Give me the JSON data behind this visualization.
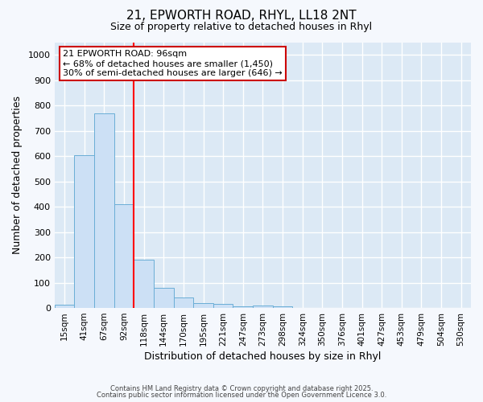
{
  "title_line1": "21, EPWORTH ROAD, RHYL, LL18 2NT",
  "title_line2": "Size of property relative to detached houses in Rhyl",
  "xlabel": "Distribution of detached houses by size in Rhyl",
  "ylabel": "Number of detached properties",
  "categories": [
    "15sqm",
    "41sqm",
    "67sqm",
    "92sqm",
    "118sqm",
    "144sqm",
    "170sqm",
    "195sqm",
    "221sqm",
    "247sqm",
    "273sqm",
    "298sqm",
    "324sqm",
    "350sqm",
    "376sqm",
    "401sqm",
    "427sqm",
    "453sqm",
    "479sqm",
    "504sqm",
    "530sqm"
  ],
  "values": [
    12,
    605,
    770,
    410,
    192,
    80,
    40,
    18,
    15,
    8,
    10,
    5,
    0,
    0,
    0,
    0,
    0,
    0,
    0,
    0,
    0
  ],
  "bar_color": "#cce0f5",
  "bar_edge_color": "#6aaed6",
  "red_line_x": 3.5,
  "annotation_text": "21 EPWORTH ROAD: 96sqm\n← 68% of detached houses are smaller (1,450)\n30% of semi-detached houses are larger (646) →",
  "annotation_box_facecolor": "#ffffff",
  "annotation_box_edgecolor": "#cc0000",
  "ylim": [
    0,
    1050
  ],
  "yticks": [
    0,
    100,
    200,
    300,
    400,
    500,
    600,
    700,
    800,
    900,
    1000
  ],
  "plot_bg_color": "#dce9f5",
  "fig_bg_color": "#f5f8fd",
  "grid_color": "#ffffff",
  "footer_line1": "Contains HM Land Registry data © Crown copyright and database right 2025.",
  "footer_line2": "Contains public sector information licensed under the Open Government Licence 3.0."
}
